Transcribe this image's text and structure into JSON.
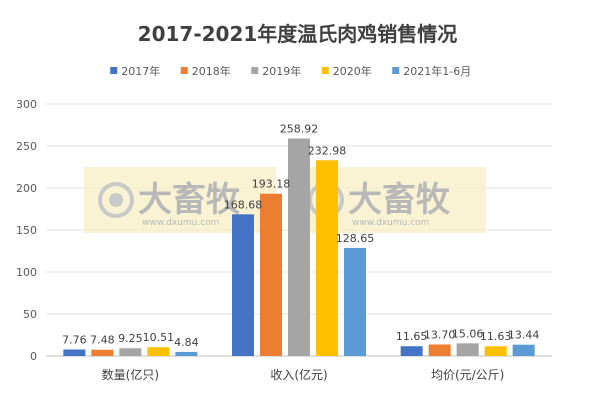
{
  "chart_data": {
    "type": "bar",
    "title": "2017-2021年度温氏肉鸡销售情况",
    "categories": [
      "数量(亿只)",
      "收入(亿元)",
      "均价(元/公斤)"
    ],
    "series": [
      {
        "name": "2017年",
        "color": "#4472C4",
        "values": [
          7.76,
          168.68,
          11.65
        ]
      },
      {
        "name": "2018年",
        "color": "#ED7D31",
        "values": [
          7.48,
          193.18,
          13.7
        ]
      },
      {
        "name": "2019年",
        "color": "#A5A5A5",
        "values": [
          9.25,
          258.92,
          15.06
        ]
      },
      {
        "name": "2020年",
        "color": "#FFC000",
        "values": [
          10.51,
          232.98,
          11.63
        ]
      },
      {
        "name": "2021年1-6月",
        "color": "#5B9BD5",
        "values": [
          4.84,
          128.65,
          13.44
        ]
      }
    ],
    "ylim": [
      0,
      300
    ],
    "yticks": [
      0,
      50,
      100,
      150,
      200,
      250,
      300
    ],
    "xlabel": "",
    "ylabel": "",
    "grid": true,
    "legend_position": "top",
    "data_labels": [
      [
        "7.76",
        "168.68",
        "11.65"
      ],
      [
        "7.48",
        "193.18",
        "13.70"
      ],
      [
        "9.25",
        "258.92",
        "15.06"
      ],
      [
        "10.51",
        "232.98",
        "11.63"
      ],
      [
        "4.84",
        "128.65",
        "13.44"
      ]
    ]
  },
  "watermark": {
    "text": "大畜牧",
    "url": "www.dxumu.com"
  }
}
